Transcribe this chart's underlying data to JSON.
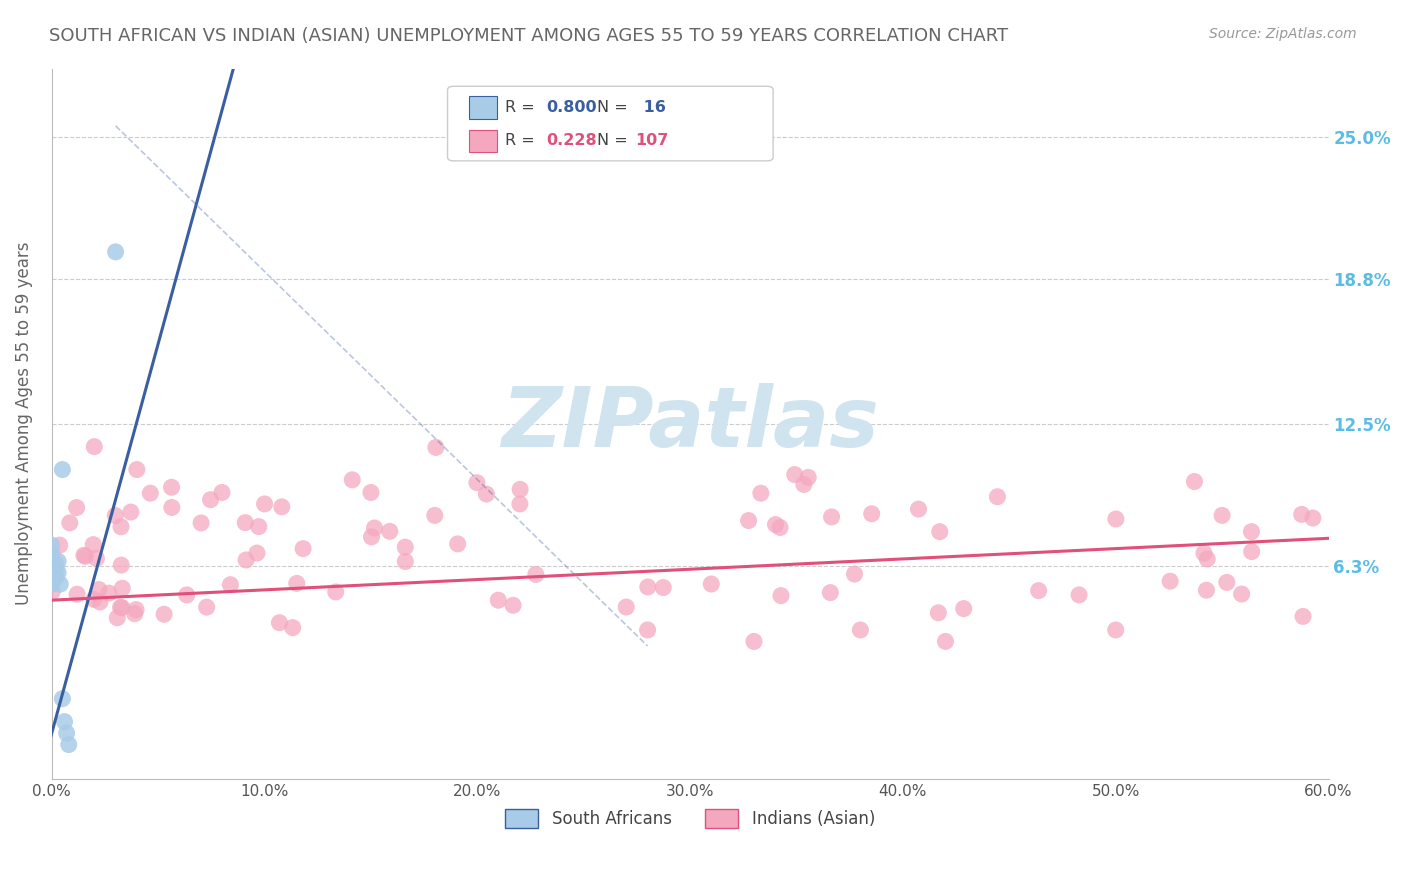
{
  "title": "SOUTH AFRICAN VS INDIAN (ASIAN) UNEMPLOYMENT AMONG AGES 55 TO 59 YEARS CORRELATION CHART",
  "source": "Source: ZipAtlas.com",
  "ylabel": "Unemployment Among Ages 55 to 59 years",
  "xlim": [
    0.0,
    0.6
  ],
  "ylim": [
    -0.03,
    0.28
  ],
  "xticks": [
    0.0,
    0.1,
    0.2,
    0.3,
    0.4,
    0.5,
    0.6
  ],
  "xticklabels": [
    "0.0%",
    "10.0%",
    "20.0%",
    "30.0%",
    "40.0%",
    "50.0%",
    "60.0%"
  ],
  "ytick_positions": [
    0.063,
    0.125,
    0.188,
    0.25
  ],
  "ytick_labels": [
    "6.3%",
    "12.5%",
    "18.8%",
    "25.0%"
  ],
  "bg_color": "#ffffff",
  "scatter_blue_color": "#a8cce8",
  "scatter_pink_color": "#f4a8c0",
  "line_blue_color": "#3a5fa0",
  "line_pink_color": "#e0507a",
  "grid_color": "#cccccc",
  "title_color": "#666666",
  "ytick_right_color": "#5bbce4",
  "watermark_color": "#d0e4f0"
}
